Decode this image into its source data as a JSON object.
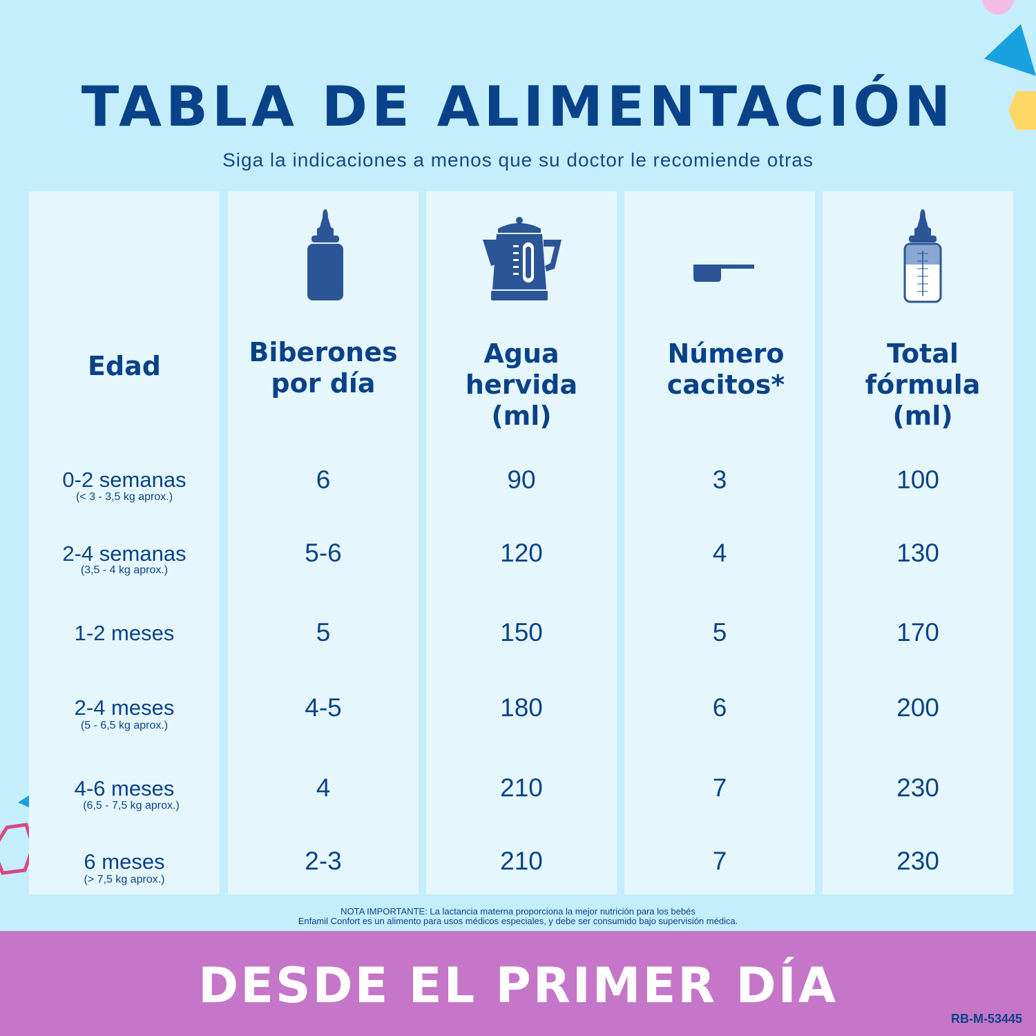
{
  "title": "TABLA DE ALIMENTACIÓN",
  "subtitle": "Siga la indicaciones a menos que su doctor le recomiende otras",
  "headers": {
    "age": "Edad",
    "bottles_l1": "Biberones",
    "bottles_l2": "por día",
    "water_l1": "Agua",
    "water_l2": "hervida",
    "water_l3": "(ml)",
    "scoops_l1": "Número",
    "scoops_l2": "cacitos*",
    "total_l1": "Total",
    "total_l2": "fórmula",
    "total_l3": "(ml)"
  },
  "icons": {
    "bottles": "baby-bottle-icon",
    "water": "kettle-icon",
    "scoops": "scoop-icon",
    "total": "measuring-bottle-icon"
  },
  "rows": [
    {
      "age": "0-2 semanas",
      "weight": "(< 3 - 3,5 kg aprox.)",
      "bottles": "6",
      "water": "90",
      "scoops": "3",
      "total": "100"
    },
    {
      "age": "2-4 semanas",
      "weight": "(3,5 - 4 kg aprox.)",
      "bottles": "5-6",
      "water": "120",
      "scoops": "4",
      "total": "130"
    },
    {
      "age": "1-2 meses",
      "weight": "",
      "bottles": "5",
      "water": "150",
      "scoops": "5",
      "total": "170"
    },
    {
      "age": "2-4 meses",
      "weight": "(5 - 6,5 kg aprox.)",
      "bottles": "4-5",
      "water": "180",
      "scoops": "6",
      "total": "200"
    },
    {
      "age": "4-6 meses",
      "weight": "(6,5 - 7,5 kg aprox.)",
      "bottles": "4",
      "water": "210",
      "scoops": "7",
      "total": "230"
    },
    {
      "age": "6 meses",
      "weight": "(> 7,5 kg aprox.)",
      "bottles": "2-3",
      "water": "210",
      "scoops": "7",
      "total": "230"
    }
  ],
  "note_line1": "NOTA IMPORTANTE: La lactancia materna proporciona la mejor nutrición para los bebés",
  "note_line2": "Enfamil Confort es un alimento para usos médicos especiales, y debe ser consumido bajo supervisión médica.",
  "slogan": "DESDE EL PRIMER DÍA",
  "code": "RB-M-53445",
  "colors": {
    "background": "#c4eefb",
    "column": "#e5f7fd",
    "text": "#0a4289",
    "icon": "#2b5597",
    "footer": "#c576c8"
  }
}
